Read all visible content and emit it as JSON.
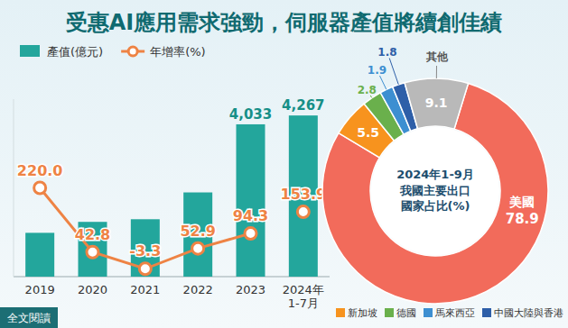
{
  "chart_data": [
    {
      "type": "bar",
      "title": "受惠AI應用需求強勁，伺服器產值將續創佳績",
      "categories": [
        "2019",
        "2020",
        "2021",
        "2022",
        "2023",
        "2024年\n1-7月"
      ],
      "series": [
        {
          "name": "產值(億元)",
          "type": "bar",
          "color": "#23a69c",
          "values": [
            1160,
            1450,
            1520,
            2230,
            4033,
            4267
          ],
          "value_labels": [
            null,
            null,
            null,
            null,
            "4,033",
            "4,267"
          ],
          "data_labels": true
        },
        {
          "name": "年增率(%)",
          "type": "line",
          "axis": "y2",
          "color": "#ee8344",
          "marker": "circle",
          "values": [
            220,
            42.8,
            -3.3,
            52.9,
            94.3,
            null
          ],
          "value_labels": [
            "220.0",
            "42.8",
            "-3.3",
            "52.9",
            "94.3",
            null
          ],
          "data_labels": true
        },
        {
          "type": "scatter",
          "axis": "y2",
          "color": "#ee8344",
          "marker": "circle",
          "values": [
            null,
            null,
            null,
            null,
            null,
            153.9
          ],
          "data_labels": true
        }
      ],
      "ylim": [
        0,
        4700
      ],
      "y2lim": [
        -25,
        465
      ],
      "tick_labels": false,
      "legend": "top-left"
    },
    {
      "type": "pie",
      "title": "2024年1-9月\n我國主要出口\n國家占比(%)",
      "categories": [
        "美國",
        "新加坡",
        "德國",
        "馬來西亞",
        "中國大陸與香港",
        "其他"
      ],
      "values": [
        78.9,
        5.5,
        2.8,
        1.9,
        1.8,
        9.1
      ],
      "colors": [
        "#f26b5b",
        "#f7931e",
        "#6ab04c",
        "#3d8fd1",
        "#2e5fa8",
        "#b9b9b9"
      ],
      "data_labels": true,
      "legend": "bottom-right"
    }
  ],
  "footer": {
    "button": "全文閱讀"
  }
}
